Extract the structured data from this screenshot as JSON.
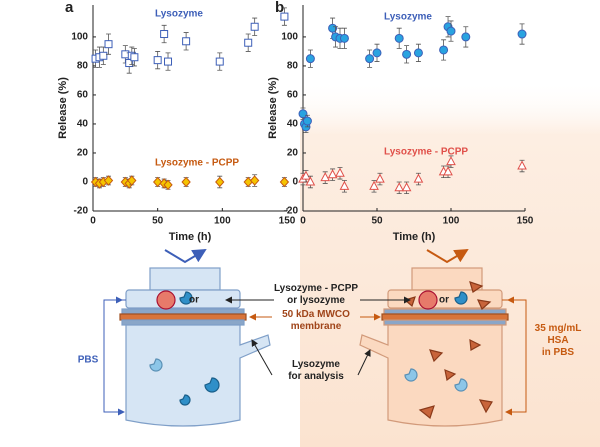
{
  "chart_data": [
    {
      "type": "scatter",
      "panel": "a",
      "xlabel": "Time (h)",
      "ylabel": "Release (%)",
      "xlim": [
        0,
        150
      ],
      "ylim": [
        -20,
        122
      ],
      "xticks": [
        0,
        50,
        100,
        150
      ],
      "yticks": [
        -20,
        0,
        20,
        40,
        60,
        80,
        100
      ],
      "series": [
        {
          "name": "Lysozyme",
          "color": "#3d5fb8",
          "fill": "#ffffff",
          "marker": "square",
          "x": [
            2,
            5,
            8,
            12,
            25,
            28,
            30,
            32,
            50,
            55,
            58,
            72,
            98,
            120,
            125,
            148
          ],
          "values": [
            85,
            86,
            87,
            95,
            88,
            82,
            87,
            86,
            84,
            102,
            83,
            97,
            83,
            96,
            107,
            114
          ],
          "errors": [
            6,
            7,
            6,
            7,
            6,
            7,
            6,
            6,
            6,
            6,
            6,
            6,
            6,
            6,
            6,
            6
          ]
        },
        {
          "name": "Lysozyme - PCPP",
          "color": "#c65a11",
          "fill": "#f5c400",
          "marker": "diamond",
          "x": [
            2,
            5,
            8,
            12,
            25,
            28,
            30,
            50,
            55,
            58,
            72,
            98,
            120,
            125,
            148
          ],
          "values": [
            0,
            -1,
            0,
            1,
            0,
            -1,
            1,
            0,
            -1,
            -2,
            0,
            0,
            0,
            1,
            0
          ],
          "errors": [
            3,
            3,
            3,
            3,
            3,
            3,
            3,
            3,
            3,
            3,
            3,
            4,
            3,
            4,
            3
          ]
        }
      ]
    },
    {
      "type": "scatter",
      "panel": "b",
      "xlabel": "Time (h)",
      "ylabel": "Release (%)",
      "xlim": [
        0,
        150
      ],
      "ylim": [
        -20,
        122
      ],
      "xticks": [
        0,
        50,
        100,
        150
      ],
      "yticks": [
        -20,
        0,
        20,
        40,
        60,
        80,
        100
      ],
      "series": [
        {
          "name": "Lysozyme",
          "color": "#3d5fb8",
          "fill": "#29a3e0",
          "marker": "circle",
          "x": [
            0,
            1,
            2,
            3,
            5,
            20,
            22,
            25,
            28,
            45,
            50,
            65,
            70,
            78,
            95,
            98,
            100,
            110,
            148
          ],
          "values": [
            47,
            40,
            38,
            42,
            85,
            106,
            100,
            99,
            99,
            85,
            89,
            99,
            88,
            89,
            91,
            107,
            104,
            100,
            102
          ],
          "errors": [
            4,
            4,
            4,
            4,
            6,
            7,
            7,
            7,
            7,
            6,
            6,
            7,
            6,
            6,
            7,
            7,
            7,
            7,
            7
          ]
        },
        {
          "name": "Lysozyme - PCPP",
          "color": "#e0504a",
          "fill": "#ffffff",
          "marker": "triangle",
          "x": [
            0,
            2,
            5,
            15,
            20,
            25,
            28,
            48,
            52,
            65,
            70,
            78,
            95,
            98,
            100,
            148
          ],
          "values": [
            2,
            4,
            0,
            3,
            5,
            6,
            -3,
            -3,
            2,
            -4,
            -4,
            2,
            7,
            7,
            14,
            11
          ],
          "errors": [
            4,
            4,
            4,
            4,
            4,
            4,
            4,
            4,
            4,
            4,
            4,
            4,
            4,
            4,
            4,
            4
          ]
        }
      ]
    }
  ],
  "diagram": {
    "inlet": "Lysozyme - PCPP\nor lysozyme",
    "or": "or",
    "membrane": "50 kDa MWCO\nmembrane",
    "outlet": "Lysozyme\nfor analysis",
    "left_medium": "PBS",
    "right_medium": "35 mg/mL\nHSA\nin PBS"
  }
}
